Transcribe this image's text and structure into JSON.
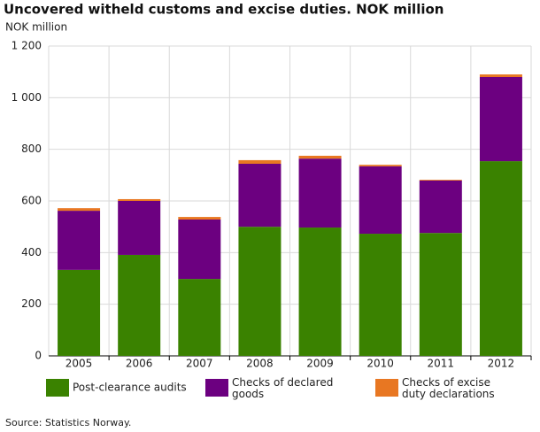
{
  "chart_data": {
    "type": "stacked_bar",
    "title": "Uncovered witheld customs and excise duties. NOK million",
    "y_label": "NOK million",
    "source": "Source: Statistics Norway.",
    "categories": [
      "2005",
      "2006",
      "2007",
      "2008",
      "2009",
      "2010",
      "2011",
      "2012"
    ],
    "series": [
      {
        "name": "Post-clearance audits",
        "color": "#3a8200",
        "values": [
          333,
          391,
          298,
          500,
          497,
          473,
          476,
          754
        ]
      },
      {
        "name": "Checks of declared goods",
        "color": "#6c0080",
        "values": [
          229,
          209,
          230,
          244,
          267,
          261,
          203,
          326
        ]
      },
      {
        "name": "Checks of excise duty declarations",
        "color": "#e87722",
        "values": [
          10,
          7,
          10,
          14,
          11,
          6,
          3,
          10
        ]
      }
    ],
    "ylim": [
      0,
      1200
    ],
    "yticks": [
      0,
      200,
      400,
      600,
      800,
      {
        "value": 1000,
        "label": "1 000"
      },
      {
        "value": 1200,
        "label": "1 200"
      }
    ],
    "grid": true
  }
}
